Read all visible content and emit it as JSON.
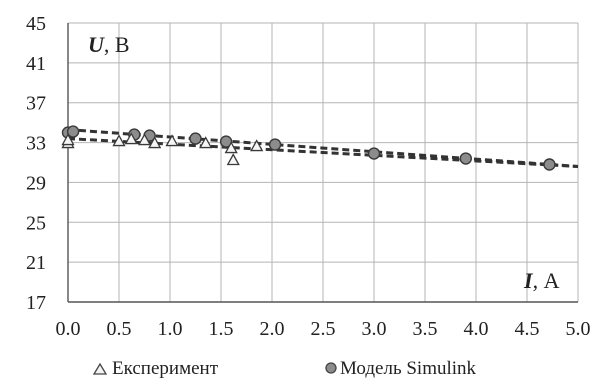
{
  "chart_data": {
    "type": "scatter",
    "xlabel": {
      "var": "I",
      "unit": ", А"
    },
    "ylabel": {
      "var": "U",
      "unit": ", В"
    },
    "xlim": [
      0,
      5
    ],
    "ylim": [
      17,
      45
    ],
    "x_ticks": [
      "0.0",
      "0.5",
      "1.0",
      "1.5",
      "2.0",
      "2.5",
      "3.0",
      "3.5",
      "4.0",
      "4.5",
      "5.0"
    ],
    "y_ticks": [
      "17",
      "21",
      "25",
      "29",
      "33",
      "37",
      "41",
      "45"
    ],
    "grid": true,
    "legend_position": "bottom",
    "series": [
      {
        "name": "Експеримент",
        "marker": "triangle",
        "color": "#444444",
        "points": [
          {
            "x": 0.0,
            "y": 33.0
          },
          {
            "x": 0.0,
            "y": 33.3
          },
          {
            "x": 0.5,
            "y": 33.2
          },
          {
            "x": 0.62,
            "y": 33.4
          },
          {
            "x": 0.75,
            "y": 33.3
          },
          {
            "x": 0.85,
            "y": 33.0
          },
          {
            "x": 1.02,
            "y": 33.2
          },
          {
            "x": 1.35,
            "y": 33.0
          },
          {
            "x": 1.6,
            "y": 32.5
          },
          {
            "x": 1.62,
            "y": 31.3
          },
          {
            "x": 1.85,
            "y": 32.7
          }
        ],
        "trendline": {
          "x": [
            0,
            5
          ],
          "y": [
            33.4,
            30.6
          ]
        }
      },
      {
        "name": "Модель Simulink",
        "marker": "circle",
        "color": "#555555",
        "points": [
          {
            "x": 0.0,
            "y": 34.0
          },
          {
            "x": 0.05,
            "y": 34.1
          },
          {
            "x": 0.65,
            "y": 33.8
          },
          {
            "x": 0.8,
            "y": 33.7
          },
          {
            "x": 1.25,
            "y": 33.4
          },
          {
            "x": 1.55,
            "y": 33.1
          },
          {
            "x": 2.03,
            "y": 32.8
          },
          {
            "x": 3.0,
            "y": 31.9
          },
          {
            "x": 3.9,
            "y": 31.4
          },
          {
            "x": 4.72,
            "y": 30.8
          }
        ],
        "trendline": {
          "x": [
            0,
            5
          ],
          "y": [
            34.3,
            30.6
          ]
        }
      }
    ]
  }
}
